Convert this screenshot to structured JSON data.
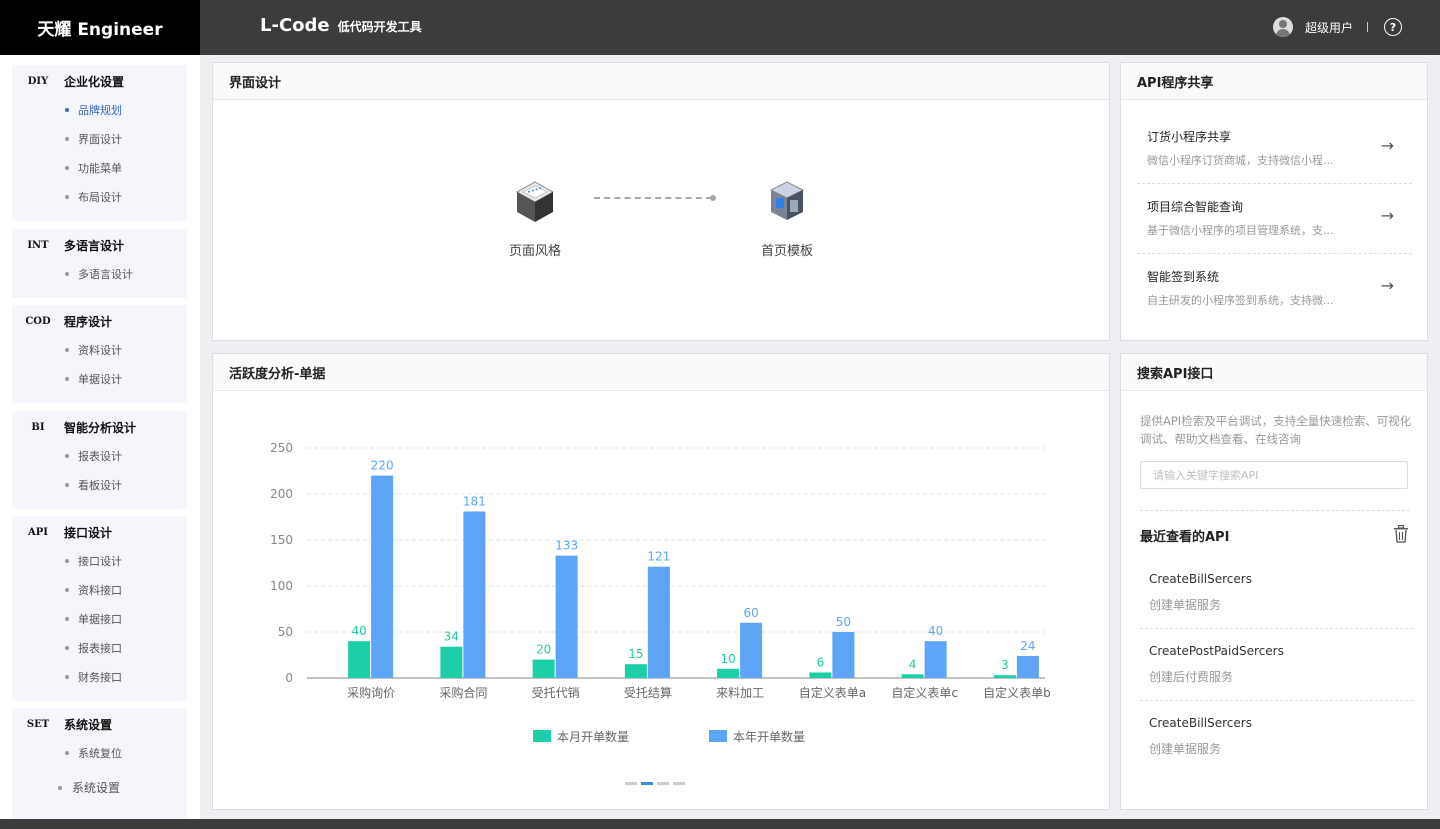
{
  "header": {
    "brand": "天耀 Engineer",
    "product_name": "L-Code",
    "product_sub": "低代码开发工具",
    "user_name": "超级用户",
    "help_icon": "?"
  },
  "sidebar": {
    "groups": [
      {
        "code": "DIY",
        "title": "企业化设置",
        "items": [
          "品牌规划",
          "界面设计",
          "功能菜单",
          "布局设计"
        ]
      },
      {
        "code": "INT",
        "title": "多语言设计",
        "items": [
          "多语言设计"
        ]
      },
      {
        "code": "COD",
        "title": "程序设计",
        "items": [
          "资料设计",
          "单据设计"
        ]
      },
      {
        "code": "BI",
        "title": "智能分析设计",
        "items": [
          "报表设计",
          "看板设计"
        ]
      },
      {
        "code": "API",
        "title": "接口设计",
        "items": [
          "接口设计",
          "资料接口",
          "单据接口",
          "报表接口",
          "财务接口"
        ]
      },
      {
        "code": "SET",
        "title": "系统设置",
        "items": [
          "系统复位"
        ]
      }
    ],
    "extra_item": "系统设置",
    "active_item": "品牌规划"
  },
  "ui_design": {
    "title": "界面设计",
    "node1_label": "页面风格",
    "node2_label": "首页模板"
  },
  "api_share": {
    "title": "API程序共享",
    "items": [
      {
        "title": "订货小程序共享",
        "desc": "微信小程序订货商城，支持微信小程..."
      },
      {
        "title": "项目综合智能查询",
        "desc": "基于微信小程序的项目管理系统，支..."
      },
      {
        "title": "智能签到系统",
        "desc": "自主研发的小程序签到系统，支持微..."
      }
    ],
    "arrow": "→"
  },
  "search_api": {
    "title": "搜索API接口",
    "desc": "提供API检索及平台调试，支持全量快速检索、可视化调试、帮助文档查看、在线咨询",
    "placeholder": "请输入关键字搜索API",
    "recent_title": "最近查看的API",
    "recent": [
      {
        "name": "CreateBillSercers",
        "desc": "创建单据服务"
      },
      {
        "name": "CreatePostPaidSercers",
        "desc": "创建后付费服务"
      },
      {
        "name": "CreateBillSercers",
        "desc": "创建单据服务"
      }
    ]
  },
  "activity": {
    "title": "活跃度分析-单据"
  },
  "colors": {
    "series_month": "#1dcfa9",
    "series_year": "#5ea4f7",
    "active": "#3a66c4",
    "topbar": "#3c3c3c"
  },
  "chart_data": {
    "type": "bar",
    "categories": [
      "采购询价",
      "采购合同",
      "受托代销",
      "受托结算",
      "来料加工",
      "自定义表单a",
      "自定义表单c",
      "自定义表单b"
    ],
    "series": [
      {
        "name": "本月开单数量",
        "values": [
          40,
          34,
          20,
          15,
          10,
          6,
          4,
          3
        ]
      },
      {
        "name": "本年开单数量",
        "values": [
          220,
          181,
          133,
          121,
          60,
          50,
          40,
          24
        ]
      }
    ],
    "yticks": [
      0,
      50,
      100,
      150,
      200,
      250
    ],
    "ylim": [
      0,
      250
    ],
    "grid": true,
    "legend": "bottom"
  }
}
